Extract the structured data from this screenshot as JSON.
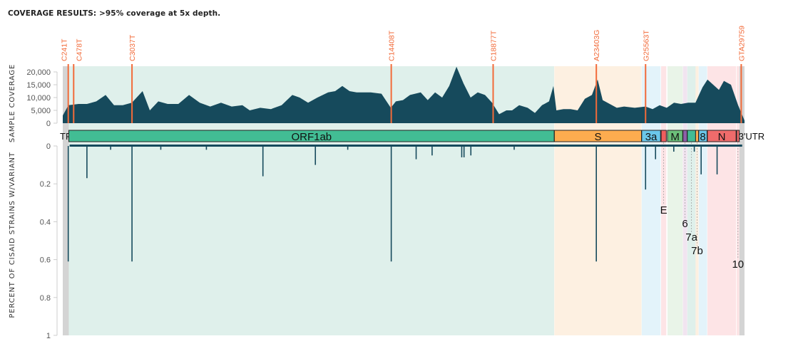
{
  "title": "COVERAGE RESULTS: >95% coverage at 5x depth.",
  "chart_data": [
    {
      "type": "area",
      "ylabel": "SAMPLE COVERAGE",
      "ylim": [
        0,
        20000
      ],
      "xlim": [
        0,
        29903
      ],
      "yticks": [
        "0",
        "5,000",
        "10,000",
        "15,000",
        "20,000"
      ],
      "ytick_values": [
        0,
        5000,
        10000,
        15000,
        20000
      ],
      "coverage": [
        [
          0,
          3000
        ],
        [
          250,
          7000
        ],
        [
          690,
          7500
        ],
        [
          1060,
          7500
        ],
        [
          1470,
          8500
        ],
        [
          1880,
          11000
        ],
        [
          2250,
          7000
        ],
        [
          2630,
          7000
        ],
        [
          3030,
          8000
        ],
        [
          3500,
          12500
        ],
        [
          3820,
          5000
        ],
        [
          4190,
          8500
        ],
        [
          4600,
          7500
        ],
        [
          5070,
          7500
        ],
        [
          5540,
          11000
        ],
        [
          6010,
          8000
        ],
        [
          6470,
          6500
        ],
        [
          6940,
          8000
        ],
        [
          7410,
          6500
        ],
        [
          7880,
          7000
        ],
        [
          8200,
          5000
        ],
        [
          8660,
          6000
        ],
        [
          9130,
          5500
        ],
        [
          9600,
          7000
        ],
        [
          10070,
          11000
        ],
        [
          10390,
          10000
        ],
        [
          10760,
          8000
        ],
        [
          11170,
          10000
        ],
        [
          11640,
          12000
        ],
        [
          11950,
          12500
        ],
        [
          12260,
          14500
        ],
        [
          12580,
          12500
        ],
        [
          12890,
          12000
        ],
        [
          13200,
          12000
        ],
        [
          13510,
          12000
        ],
        [
          13980,
          11500
        ],
        [
          14390,
          6000
        ],
        [
          14610,
          8500
        ],
        [
          14920,
          9000
        ],
        [
          15230,
          11000
        ],
        [
          15700,
          12000
        ],
        [
          16010,
          9000
        ],
        [
          16330,
          12000
        ],
        [
          16640,
          10000
        ],
        [
          16950,
          14500
        ],
        [
          17270,
          22000
        ],
        [
          17580,
          15500
        ],
        [
          17890,
          10000
        ],
        [
          18200,
          12000
        ],
        [
          18520,
          11000
        ],
        [
          18830,
          8000
        ],
        [
          19140,
          3500
        ],
        [
          19460,
          5000
        ],
        [
          19710,
          5000
        ],
        [
          20020,
          7000
        ],
        [
          20390,
          6000
        ],
        [
          20710,
          4000
        ],
        [
          21020,
          7000
        ],
        [
          21330,
          8500
        ],
        [
          21520,
          14500
        ],
        [
          21650,
          5000
        ],
        [
          21960,
          5500
        ],
        [
          22270,
          5500
        ],
        [
          22580,
          5000
        ],
        [
          22900,
          9500
        ],
        [
          23210,
          11000
        ],
        [
          23460,
          17000
        ],
        [
          23680,
          9000
        ],
        [
          23990,
          7500
        ],
        [
          24300,
          6000
        ],
        [
          24620,
          6500
        ],
        [
          25090,
          6000
        ],
        [
          25560,
          6500
        ],
        [
          25870,
          5500
        ],
        [
          26180,
          7000
        ],
        [
          26490,
          6000
        ],
        [
          26810,
          8000
        ],
        [
          27120,
          7500
        ],
        [
          27430,
          8000
        ],
        [
          27750,
          8000
        ],
        [
          28060,
          14000
        ],
        [
          28280,
          17000
        ],
        [
          28530,
          15000
        ],
        [
          28780,
          13000
        ],
        [
          29000,
          16500
        ],
        [
          29310,
          15000
        ],
        [
          29620,
          7000
        ],
        [
          29903,
          1000
        ]
      ],
      "mutations": [
        {
          "label": "C241T",
          "pos": 241
        },
        {
          "label": "C478T",
          "pos": 478
        },
        {
          "label": "C3037T",
          "pos": 3037
        },
        {
          "label": "C14408T",
          "pos": 14408
        },
        {
          "label": "C18877T",
          "pos": 18877
        },
        {
          "label": "A23403G",
          "pos": 23403
        },
        {
          "label": "G25563T",
          "pos": 25563
        },
        {
          "label": "GTA29759",
          "pos": 29759
        }
      ],
      "mutation_color": "#f26b3a",
      "fill_color": "#164a5c"
    },
    {
      "type": "genes",
      "genes": [
        {
          "label": "TR",
          "start": 0,
          "end": 265,
          "bar": "",
          "bg": "#d4d4d4"
        },
        {
          "label": "ORF1ab",
          "start": 266,
          "end": 21555,
          "bar": "#42bd94",
          "bg": "#dff0eb"
        },
        {
          "label": "S",
          "start": 21563,
          "end": 25384,
          "bar": "#fdac4f",
          "bg": "#fdf0e1"
        },
        {
          "label": "3a",
          "start": 25393,
          "end": 26220,
          "bar": "#6bc7ea",
          "bg": "#e3f3fa"
        },
        {
          "label": "E",
          "start": 26245,
          "end": 26472,
          "bar": "#ef5e5e",
          "bg": "#fde4e6"
        },
        {
          "label": "M",
          "start": 26523,
          "end": 27191,
          "bar": "#6cc07a",
          "bg": "#e9f4e8"
        },
        {
          "label": "6",
          "start": 27202,
          "end": 27387,
          "bar": "#8e5fa8",
          "bg": "#f1e4f0"
        },
        {
          "label": "7a",
          "start": 27394,
          "end": 27759,
          "bar": "#42bd94",
          "bg": "#dff0eb"
        },
        {
          "label": "7b",
          "start": 27756,
          "end": 27887,
          "bar": "#fdac4f",
          "bg": "#fdf0e1"
        },
        {
          "label": "8",
          "start": 27894,
          "end": 28259,
          "bar": "#6bc7ea",
          "bg": "#e3f3fa"
        },
        {
          "label": "N",
          "start": 28274,
          "end": 29533,
          "bar": "#ef6b6b",
          "bg": "#fde4e6"
        },
        {
          "label": "10",
          "start": 29558,
          "end": 29674,
          "bar": "#ef6b6b",
          "bg": "#fde4e6"
        },
        {
          "label": "3'UTR",
          "start": 29675,
          "end": 29903,
          "bar": "",
          "bg": "#d4d4d4"
        }
      ]
    },
    {
      "type": "bar",
      "ylabel": "PERCENT OF CISAID STRAINS W/VARIANT",
      "ylim": [
        0,
        1
      ],
      "inverted": true,
      "yticks": [
        "0",
        "0.2",
        "0.4",
        "0.6",
        "0.8",
        "1"
      ],
      "ytick_values": [
        0,
        0.2,
        0.4,
        0.6,
        0.8,
        1
      ],
      "variants": [
        [
          241,
          0.61
        ],
        [
          1060,
          0.17
        ],
        [
          3037,
          0.61
        ],
        [
          8780,
          0.16
        ],
        [
          11080,
          0.1
        ],
        [
          14408,
          0.61
        ],
        [
          15500,
          0.07
        ],
        [
          16200,
          0.05
        ],
        [
          17500,
          0.06
        ],
        [
          17600,
          0.06
        ],
        [
          17900,
          0.05
        ],
        [
          4300,
          0.02
        ],
        [
          6300,
          0.02
        ],
        [
          2100,
          0.02
        ],
        [
          12500,
          0.02
        ],
        [
          19800,
          0.02
        ],
        [
          23403,
          0.61
        ],
        [
          25563,
          0.23
        ],
        [
          26000,
          0.07
        ],
        [
          28000,
          0.15
        ],
        [
          28700,
          0.15
        ],
        [
          26800,
          0.03
        ],
        [
          27700,
          0.03
        ]
      ],
      "bar_color": "#164a5c"
    }
  ]
}
